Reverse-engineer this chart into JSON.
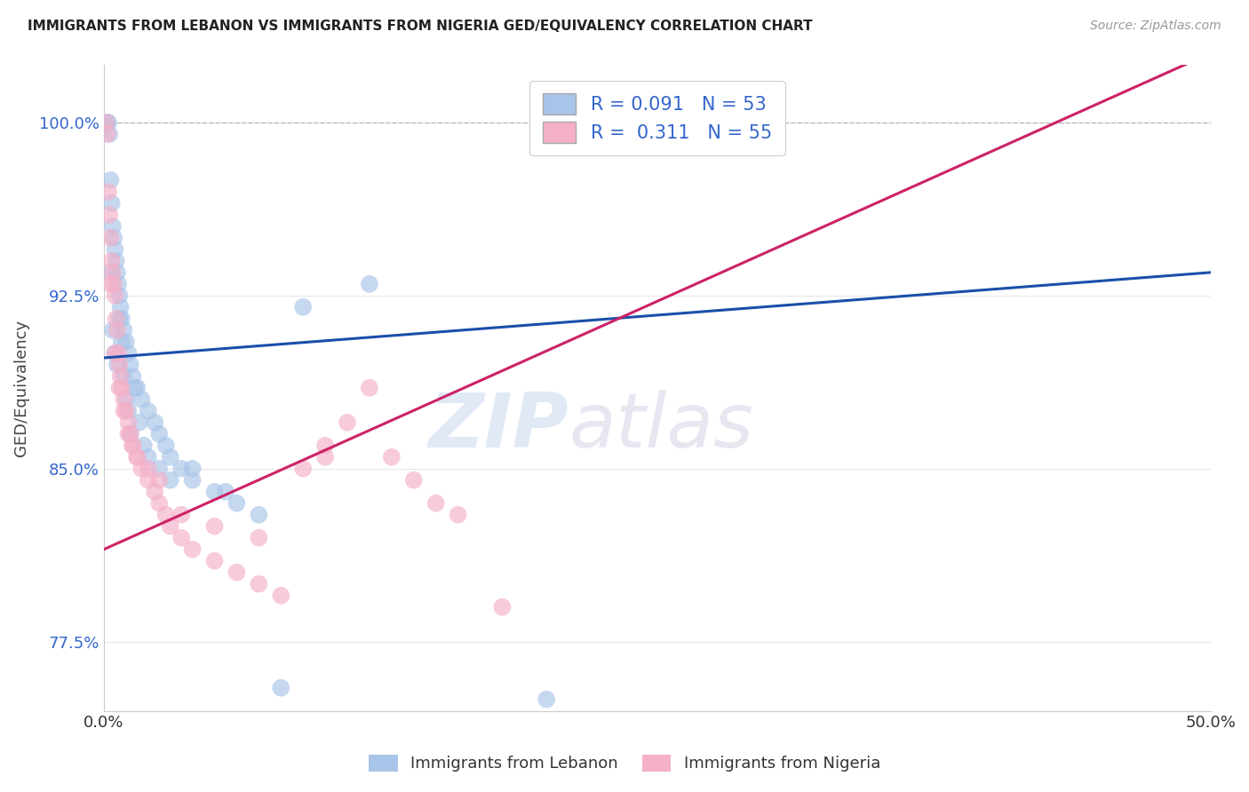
{
  "title": "IMMIGRANTS FROM LEBANON VS IMMIGRANTS FROM NIGERIA GED/EQUIVALENCY CORRELATION CHART",
  "source": "Source: ZipAtlas.com",
  "ylabel": "GED/Equivalency",
  "legend_label_1": "Immigrants from Lebanon",
  "legend_label_2": "Immigrants from Nigeria",
  "R1": 0.091,
  "N1": 53,
  "R2": 0.311,
  "N2": 55,
  "color_lebanon": "#a8c4e8",
  "color_nigeria": "#f4b0c8",
  "line_color_lebanon": "#1a4faa",
  "line_color_nigeria": "#cc2266",
  "watermark_zip": "ZIP",
  "watermark_atlas": "atlas",
  "xlim": [
    0.0,
    50.0
  ],
  "ylim": [
    74.5,
    102.5
  ],
  "yticks": [
    77.5,
    85.0,
    92.5,
    100.0
  ],
  "xticks": [
    0.0,
    50.0
  ],
  "xticklabels": [
    "0.0%",
    "50.0%"
  ],
  "yticklabels": [
    "77.5%",
    "85.0%",
    "92.5%",
    "100.0%"
  ],
  "line_leb_x0": 0.0,
  "line_leb_y0": 89.8,
  "line_leb_x1": 50.0,
  "line_leb_y1": 93.5,
  "line_nig_x0": 0.0,
  "line_nig_y0": 81.5,
  "line_nig_x1": 50.0,
  "line_nig_y1": 103.0,
  "lebanon_x": [
    0.15,
    0.2,
    0.25,
    0.3,
    0.35,
    0.4,
    0.45,
    0.5,
    0.55,
    0.6,
    0.65,
    0.7,
    0.75,
    0.8,
    0.9,
    1.0,
    1.1,
    1.2,
    1.3,
    1.5,
    1.7,
    2.0,
    2.3,
    2.5,
    2.8,
    3.0,
    3.5,
    4.0,
    5.0,
    6.0,
    7.0,
    9.0,
    12.0,
    0.3,
    0.4,
    0.5,
    0.6,
    0.7,
    0.8,
    0.9,
    1.0,
    1.1,
    1.2,
    1.4,
    1.6,
    1.8,
    2.0,
    2.5,
    3.0,
    4.0,
    5.5,
    8.0,
    20.0
  ],
  "lebanon_y": [
    100.0,
    100.0,
    99.5,
    97.5,
    96.5,
    95.5,
    95.0,
    94.5,
    94.0,
    93.5,
    93.0,
    92.5,
    92.0,
    91.5,
    91.0,
    90.5,
    90.0,
    89.5,
    89.0,
    88.5,
    88.0,
    87.5,
    87.0,
    86.5,
    86.0,
    85.5,
    85.0,
    84.5,
    84.0,
    83.5,
    83.0,
    92.0,
    93.0,
    93.5,
    91.0,
    90.0,
    89.5,
    91.5,
    90.5,
    89.0,
    88.0,
    87.5,
    86.5,
    88.5,
    87.0,
    86.0,
    85.5,
    85.0,
    84.5,
    85.0,
    84.0,
    75.5,
    75.0
  ],
  "nigeria_x": [
    0.1,
    0.15,
    0.2,
    0.25,
    0.3,
    0.35,
    0.4,
    0.45,
    0.5,
    0.55,
    0.6,
    0.65,
    0.7,
    0.75,
    0.8,
    0.9,
    1.0,
    1.1,
    1.2,
    1.3,
    1.5,
    1.7,
    2.0,
    2.3,
    2.5,
    2.8,
    3.0,
    3.5,
    4.0,
    5.0,
    6.0,
    7.0,
    8.0,
    9.0,
    10.0,
    11.0,
    12.0,
    13.0,
    14.0,
    15.0,
    16.0,
    0.3,
    0.5,
    0.7,
    0.9,
    1.1,
    1.3,
    1.5,
    2.0,
    2.5,
    3.5,
    5.0,
    7.0,
    10.0,
    18.0
  ],
  "nigeria_y": [
    100.0,
    99.5,
    97.0,
    96.0,
    95.0,
    94.0,
    93.5,
    93.0,
    92.5,
    91.5,
    91.0,
    90.0,
    89.5,
    89.0,
    88.5,
    88.0,
    87.5,
    87.0,
    86.5,
    86.0,
    85.5,
    85.0,
    84.5,
    84.0,
    83.5,
    83.0,
    82.5,
    82.0,
    81.5,
    81.0,
    80.5,
    80.0,
    79.5,
    85.0,
    86.0,
    87.0,
    88.5,
    85.5,
    84.5,
    83.5,
    83.0,
    93.0,
    90.0,
    88.5,
    87.5,
    86.5,
    86.0,
    85.5,
    85.0,
    84.5,
    83.0,
    82.5,
    82.0,
    85.5,
    79.0
  ]
}
